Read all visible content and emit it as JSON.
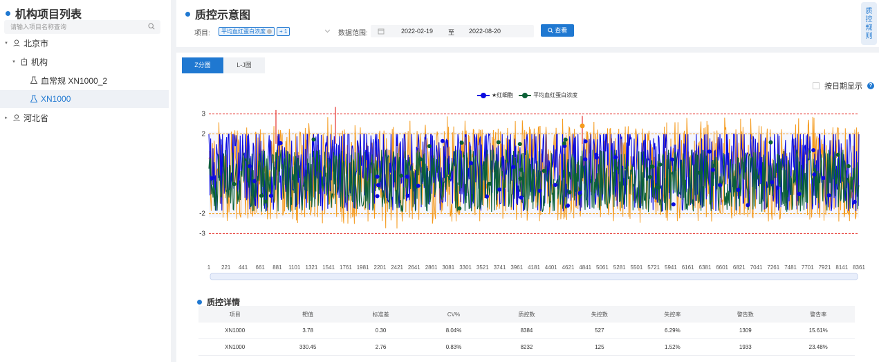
{
  "left_panel": {
    "title": "机构项目列表",
    "search_placeholder": "请输入项目名称查询",
    "tree": [
      {
        "label": "北京市",
        "caret": "▾"
      },
      {
        "label": "机构",
        "caret": "▾"
      },
      {
        "label": "血常规 XN1000_2"
      },
      {
        "label": "XN1000"
      },
      {
        "label": "河北省",
        "caret": "▸"
      }
    ]
  },
  "filter": {
    "title": "质控示意图",
    "project_label": "项目:",
    "selected_tag": "平均血红蛋白浓度",
    "extra_tag": "+ 1",
    "range_label": "数据范围:",
    "date_start": "2022-02-19",
    "date_sep": "至",
    "date_end": "2022-08-20",
    "search_button": "查看",
    "rule_button": "质控规则"
  },
  "tabs": [
    "Z分图",
    "L-J图"
  ],
  "active_tab": 0,
  "date_toggle_label": "按日期显示",
  "colors": {
    "primary": "#1f78d1",
    "series1": "#0a0ae0",
    "series2": "#0b6137",
    "warn": "#f59a1c",
    "limit": "#e5322d"
  },
  "chart_data": {
    "type": "line",
    "x_tick_labels": [
      "1",
      "221",
      "441",
      "661",
      "881",
      "1101",
      "1321",
      "1541",
      "1761",
      "1981",
      "2201",
      "2421",
      "2641",
      "2861",
      "3081",
      "3301",
      "3521",
      "3741",
      "3961",
      "4181",
      "4401",
      "4621",
      "4841",
      "5061",
      "5281",
      "5501",
      "5721",
      "5941",
      "6161",
      "6381",
      "6601",
      "6821",
      "7041",
      "7261",
      "7481",
      "7701",
      "7921",
      "8141",
      "8361"
    ],
    "y_tick_labels": [
      "3",
      "2",
      "-2",
      "-3"
    ],
    "reference_lines": [
      {
        "value": 3,
        "color": "#e5322d"
      },
      {
        "value": 2,
        "color": "#f59a1c"
      },
      {
        "value": -2,
        "color": "#f59a1c"
      },
      {
        "value": -3,
        "color": "#e5322d"
      }
    ],
    "ylim": [
      -3.3,
      3.3
    ],
    "xlim": [
      1,
      8384
    ],
    "series": [
      {
        "name": "★红细胞",
        "color": "#0a0ae0"
      },
      {
        "name": "平均血红蛋白浓度",
        "color": "#0b6137"
      }
    ]
  },
  "details": {
    "title": "质控详情",
    "headers": [
      "项目",
      "靶值",
      "标准差",
      "CV%",
      "质控数",
      "失控数",
      "失控率",
      "警告数",
      "警告率"
    ],
    "rows": [
      [
        "XN1000",
        "3.78",
        "0.30",
        "8.04%",
        "8384",
        "527",
        "6.29%",
        "1309",
        "15.61%"
      ],
      [
        "XN1000",
        "330.45",
        "2.76",
        "0.83%",
        "8232",
        "125",
        "1.52%",
        "1933",
        "23.48%"
      ]
    ]
  }
}
